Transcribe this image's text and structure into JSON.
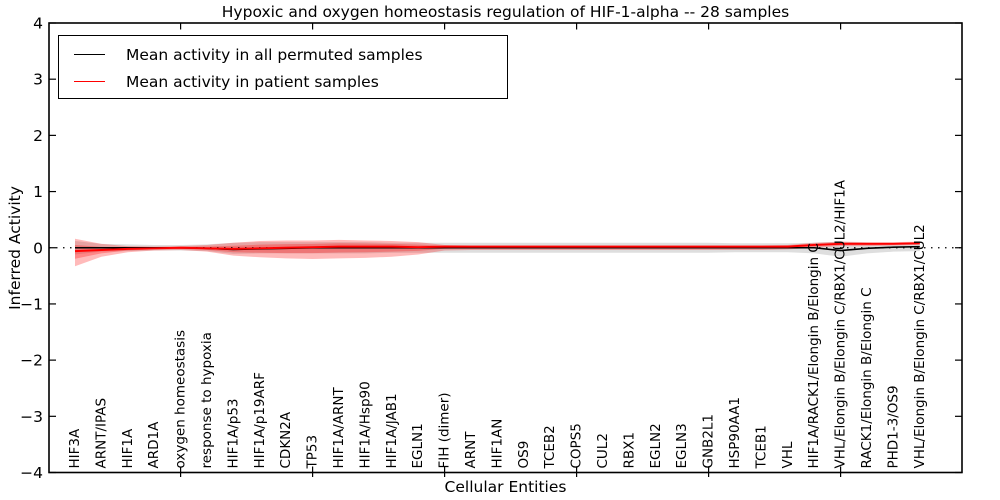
{
  "title": "Hypoxic and oxygen homeostasis regulation of HIF-1-alpha -- 28 samples",
  "axes": {
    "xlabel": "Cellular Entities",
    "ylabel": "Inferred Activity"
  },
  "legend": {
    "items": [
      {
        "label": "Mean activity in all permuted samples",
        "color": "#000000"
      },
      {
        "label": "Mean activity in patient samples",
        "color": "#ff0000"
      }
    ]
  },
  "chart_data": {
    "type": "line",
    "title": "Hypoxic and oxygen homeostasis regulation of HIF-1-alpha -- 28 samples",
    "xlabel": "Cellular Entities",
    "ylabel": "Inferred Activity",
    "ylim": [
      -4,
      4
    ],
    "yticks": [
      -4,
      -3,
      -2,
      -1,
      0,
      1,
      2,
      3,
      4
    ],
    "ytick_labels": [
      "−4",
      "−3",
      "−2",
      "−1",
      "0",
      "1",
      "2",
      "3",
      "4"
    ],
    "xtick_values": [
      5,
      10,
      15,
      20,
      25,
      30
    ],
    "grid": false,
    "legend_position": "upper left",
    "baseline": {
      "y": 0,
      "style": "dotted",
      "color": "#000000"
    },
    "categories": [
      "HIF3A",
      "ARNT/IPAS",
      "HIF1A",
      "ARD1A",
      "oxygen homeostasis",
      "response to hypoxia",
      "HIF1A/p53",
      "HIF1A/p19ARF",
      "CDKN2A",
      "TP53",
      "HIF1A/ARNT",
      "HIF1A/Hsp90",
      "HIF1A/JAB1",
      "EGLN1",
      "FIH (dimer)",
      "ARNT",
      "HIF1AN",
      "OS9",
      "TCEB2",
      "COPS5",
      "CUL2",
      "RBX1",
      "EGLN2",
      "EGLN3",
      "GNB2L1",
      "HSP90AA1",
      "TCEB1",
      "VHL",
      "HIF1A/RACK1/Elongin B/Elongin C",
      "VHL/Elongin B/Elongin C/RBX1/CUL2/HIF1A",
      "RACK1/Elongin B/Elongin C",
      "PHD1-3/OS9",
      "VHL/Elongin B/Elongin C/RBX1/CUL2"
    ],
    "series": [
      {
        "name": "Mean activity in all permuted samples",
        "color": "#000000",
        "values": [
          0.0,
          0.0,
          0.0,
          0.0,
          0.0,
          -0.01,
          -0.03,
          -0.02,
          -0.01,
          0.0,
          0.0,
          0.0,
          0.0,
          0.0,
          0.0,
          0.0,
          0.0,
          0.0,
          0.0,
          0.0,
          0.0,
          0.0,
          0.0,
          0.0,
          0.0,
          0.0,
          0.0,
          0.0,
          0.0,
          -0.05,
          -0.01,
          0.01,
          0.02
        ]
      },
      {
        "name": "Mean activity in patient samples",
        "color": "#ff0000",
        "values": [
          -0.06,
          -0.04,
          -0.02,
          -0.01,
          0.0,
          -0.01,
          -0.02,
          -0.01,
          0.0,
          0.01,
          0.02,
          0.02,
          0.02,
          0.01,
          0.02,
          0.02,
          0.02,
          0.02,
          0.02,
          0.02,
          0.02,
          0.02,
          0.02,
          0.02,
          0.02,
          0.02,
          0.02,
          0.02,
          0.05,
          0.07,
          0.07,
          0.07,
          0.08
        ]
      }
    ],
    "bands": [
      {
        "name": "permuted-samples-range",
        "color": "rgba(0,0,0,0.13)",
        "upper": [
          0.12,
          0.07,
          0.06,
          0.05,
          0.05,
          0.06,
          0.09,
          0.1,
          0.1,
          0.1,
          0.1,
          0.1,
          0.09,
          0.09,
          0.09,
          0.09,
          0.09,
          0.09,
          0.09,
          0.09,
          0.09,
          0.09,
          0.09,
          0.09,
          0.09,
          0.08,
          0.08,
          0.08,
          0.09,
          0.11,
          0.09,
          0.07,
          0.06
        ],
        "lower": [
          -0.12,
          -0.07,
          -0.06,
          -0.05,
          -0.05,
          -0.06,
          -0.11,
          -0.1,
          -0.1,
          -0.1,
          -0.1,
          -0.1,
          -0.09,
          -0.09,
          -0.09,
          -0.09,
          -0.09,
          -0.09,
          -0.09,
          -0.09,
          -0.09,
          -0.09,
          -0.09,
          -0.09,
          -0.09,
          -0.08,
          -0.08,
          -0.08,
          -0.1,
          -0.16,
          -0.1,
          -0.07,
          -0.06
        ]
      },
      {
        "name": "patient-samples-range",
        "color": "rgba(255,0,0,0.27)",
        "upper": [
          0.16,
          0.07,
          0.03,
          0.02,
          0.03,
          0.05,
          0.09,
          0.12,
          0.13,
          0.13,
          0.14,
          0.13,
          0.12,
          0.1,
          0.05,
          0.04,
          0.04,
          0.04,
          0.04,
          0.04,
          0.04,
          0.04,
          0.04,
          0.04,
          0.04,
          0.04,
          0.04,
          0.05,
          0.09,
          0.11,
          0.1,
          0.1,
          0.11
        ],
        "lower": [
          -0.33,
          -0.16,
          -0.08,
          -0.05,
          -0.04,
          -0.07,
          -0.14,
          -0.17,
          -0.19,
          -0.2,
          -0.19,
          -0.18,
          -0.16,
          -0.12,
          -0.05,
          -0.04,
          -0.04,
          -0.04,
          -0.04,
          -0.04,
          -0.04,
          -0.04,
          -0.04,
          -0.04,
          -0.04,
          -0.04,
          -0.04,
          -0.03,
          0.0,
          0.03,
          0.03,
          0.04,
          0.05
        ]
      }
    ]
  }
}
